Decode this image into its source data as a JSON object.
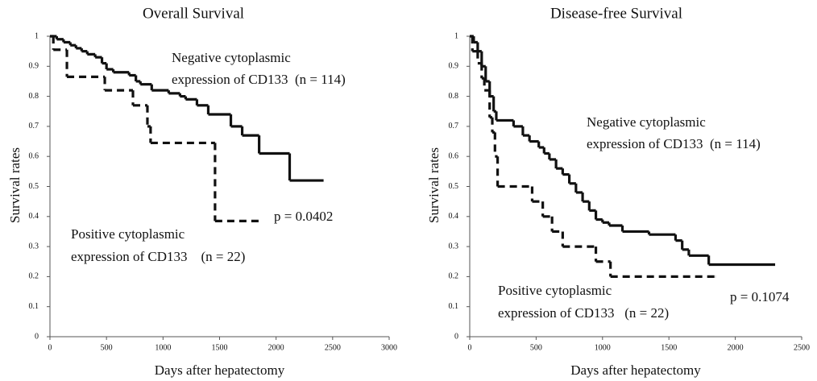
{
  "chart_data": [
    {
      "type": "step",
      "title": "Overall Survival",
      "x_label": "Days after hepatectomy",
      "y_label": "Survival rates",
      "xlim": [
        0,
        3000
      ],
      "xticks": [
        0,
        500,
        1000,
        1500,
        2000,
        2500,
        3000
      ],
      "ylim": [
        0,
        1
      ],
      "yticks": [
        0,
        0.1,
        0.2,
        0.3,
        0.4,
        0.5,
        0.6,
        0.7,
        0.8,
        0.9,
        1
      ],
      "series": [
        {
          "color": "#111111",
          "style": "solid",
          "x": [
            0,
            60,
            120,
            180,
            230,
            280,
            330,
            400,
            460,
            500,
            560,
            700,
            760,
            800,
            900,
            1050,
            1150,
            1200,
            1300,
            1400,
            1600,
            1700,
            1850,
            2120,
            2420
          ],
          "values": [
            1,
            0.99,
            0.98,
            0.97,
            0.96,
            0.95,
            0.94,
            0.93,
            0.91,
            0.89,
            0.88,
            0.87,
            0.85,
            0.84,
            0.82,
            0.81,
            0.8,
            0.79,
            0.77,
            0.74,
            0.7,
            0.67,
            0.61,
            0.52,
            0.52
          ]
        },
        {
          "color": "#111111",
          "style": "dashed",
          "x": [
            0,
            30,
            150,
            485,
            734,
            862,
            890,
            1460,
            1850
          ],
          "values": [
            1,
            0.955,
            0.865,
            0.82,
            0.77,
            0.7,
            0.645,
            0.385,
            0.385
          ]
        }
      ],
      "annotations": [
        "Negative cytoplasmic",
        "expression of CD133  (n = 114)",
        "p = 0.0402",
        "Positive cytoplasmic",
        "expression of CD133    (n = 22)"
      ]
    },
    {
      "type": "step",
      "title": "Disease-free Survival",
      "x_label": "Days after hepatectomy",
      "y_label": "Survival rates",
      "xlim": [
        0,
        2500
      ],
      "xticks": [
        0,
        500,
        1000,
        1500,
        2000,
        2500
      ],
      "ylim": [
        0,
        1
      ],
      "yticks": [
        0,
        0.1,
        0.2,
        0.3,
        0.4,
        0.5,
        0.6,
        0.7,
        0.8,
        0.9,
        1
      ],
      "series": [
        {
          "color": "#111111",
          "style": "solid",
          "x": [
            0,
            30,
            60,
            90,
            120,
            150,
            180,
            200,
            330,
            400,
            450,
            520,
            560,
            600,
            650,
            700,
            750,
            800,
            850,
            900,
            950,
            1000,
            1050,
            1150,
            1350,
            1550,
            1600,
            1650,
            1800,
            2300
          ],
          "values": [
            1,
            0.98,
            0.95,
            0.9,
            0.85,
            0.8,
            0.75,
            0.72,
            0.7,
            0.67,
            0.65,
            0.63,
            0.61,
            0.59,
            0.56,
            0.54,
            0.51,
            0.48,
            0.45,
            0.42,
            0.39,
            0.38,
            0.37,
            0.35,
            0.34,
            0.32,
            0.29,
            0.27,
            0.24,
            0.24
          ]
        },
        {
          "color": "#111111",
          "style": "dashed",
          "x": [
            0,
            20,
            60,
            90,
            110,
            150,
            170,
            190,
            210,
            470,
            550,
            620,
            700,
            950,
            1060,
            1850
          ],
          "values": [
            1,
            0.95,
            0.91,
            0.86,
            0.82,
            0.73,
            0.68,
            0.6,
            0.5,
            0.45,
            0.4,
            0.35,
            0.3,
            0.25,
            0.2,
            0.2
          ]
        }
      ],
      "annotations": [
        "Negative cytoplasmic",
        "expression of CD133  (n = 114)",
        "p = 0.1074",
        "Positive cytoplasmic",
        "expression of CD133   (n = 22)"
      ]
    }
  ]
}
